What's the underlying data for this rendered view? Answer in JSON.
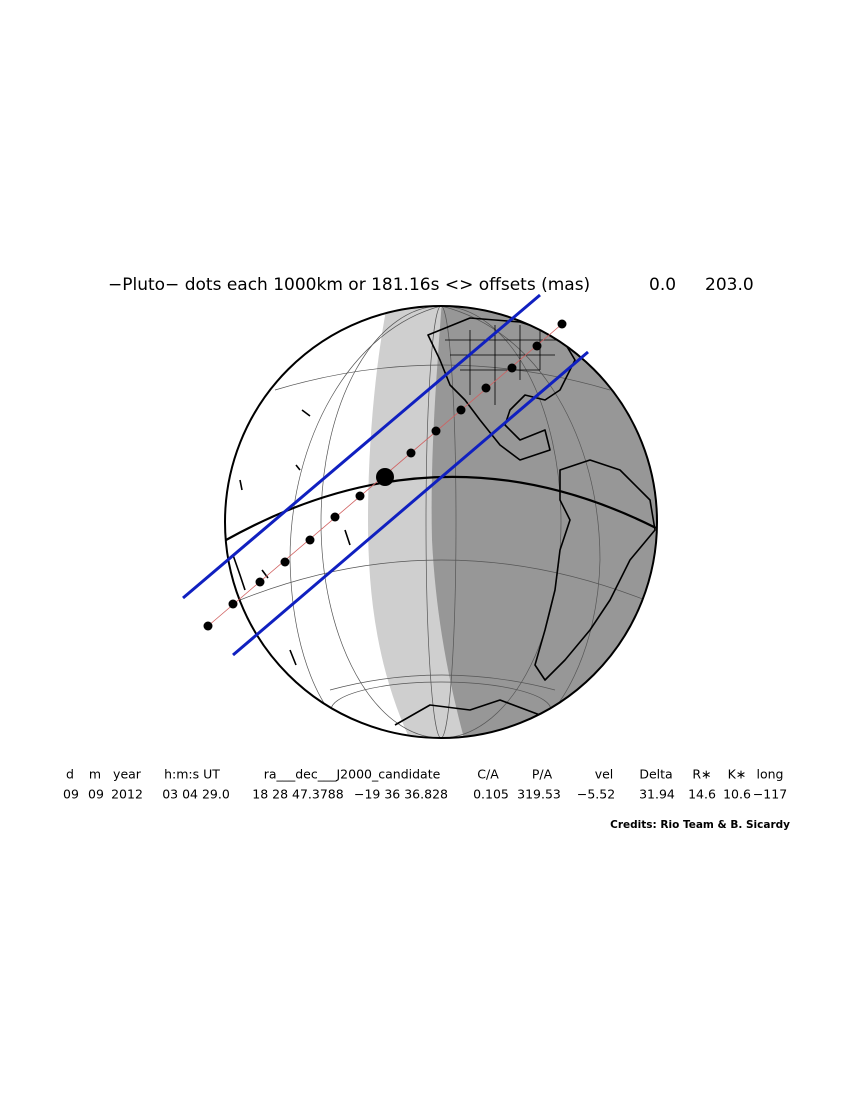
{
  "title": {
    "text": "−Pluto− dots each 1000km or 181.16s <> offsets (mas)",
    "offsets": [
      "0.0",
      "203.0"
    ]
  },
  "table": {
    "header": [
      "d",
      "m",
      "year",
      "h:m:s UT",
      "ra___dec___J2000_candidate",
      "C/A",
      "P/A",
      "vel",
      "Delta",
      "R∗",
      "K∗",
      "long"
    ],
    "row": [
      "09",
      "09",
      "2012",
      "03 04 29.0",
      "18 28 47.3788",
      "−19 36 36.828",
      "0.105",
      "319.53",
      "−5.52",
      "31.94",
      "14.6",
      "10.6",
      "−117"
    ]
  },
  "credits": "Credits: Rio Team & B. Sicardy"
}
